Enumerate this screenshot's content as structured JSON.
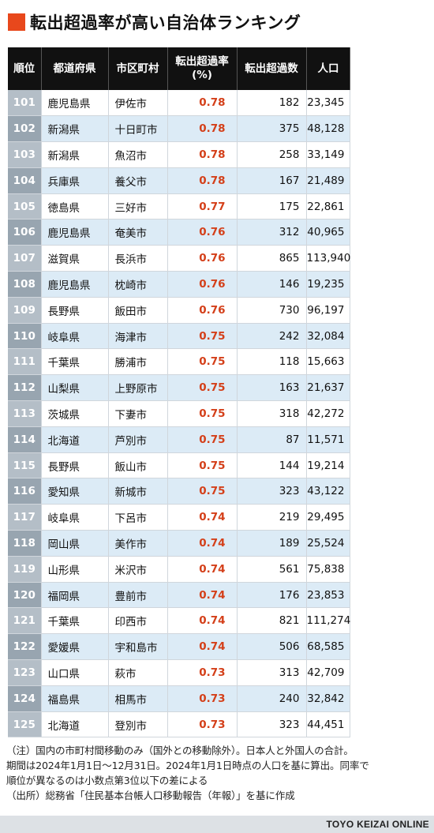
{
  "title": "転出超過率が高い自治体ランキング",
  "accent_color": "#e8481c",
  "header": {
    "rank": "順位",
    "prefecture": "都道府県",
    "municipality": "市区町村",
    "rate_line1": "転出超過率",
    "rate_line2": "(%)",
    "net_outflow": "転出超過数",
    "population": "人口"
  },
  "rows": [
    {
      "rank": "101",
      "prefecture": "鹿児島県",
      "municipality": "伊佐市",
      "rate": "0.78",
      "net_outflow": "182",
      "population": "23,345"
    },
    {
      "rank": "102",
      "prefecture": "新潟県",
      "municipality": "十日町市",
      "rate": "0.78",
      "net_outflow": "375",
      "population": "48,128"
    },
    {
      "rank": "103",
      "prefecture": "新潟県",
      "municipality": "魚沼市",
      "rate": "0.78",
      "net_outflow": "258",
      "population": "33,149"
    },
    {
      "rank": "104",
      "prefecture": "兵庫県",
      "municipality": "養父市",
      "rate": "0.78",
      "net_outflow": "167",
      "population": "21,489"
    },
    {
      "rank": "105",
      "prefecture": "徳島県",
      "municipality": "三好市",
      "rate": "0.77",
      "net_outflow": "175",
      "population": "22,861"
    },
    {
      "rank": "106",
      "prefecture": "鹿児島県",
      "municipality": "奄美市",
      "rate": "0.76",
      "net_outflow": "312",
      "population": "40,965"
    },
    {
      "rank": "107",
      "prefecture": "滋賀県",
      "municipality": "長浜市",
      "rate": "0.76",
      "net_outflow": "865",
      "population": "113,940"
    },
    {
      "rank": "108",
      "prefecture": "鹿児島県",
      "municipality": "枕崎市",
      "rate": "0.76",
      "net_outflow": "146",
      "population": "19,235"
    },
    {
      "rank": "109",
      "prefecture": "長野県",
      "municipality": "飯田市",
      "rate": "0.76",
      "net_outflow": "730",
      "population": "96,197"
    },
    {
      "rank": "110",
      "prefecture": "岐阜県",
      "municipality": "海津市",
      "rate": "0.75",
      "net_outflow": "242",
      "population": "32,084"
    },
    {
      "rank": "111",
      "prefecture": "千葉県",
      "municipality": "勝浦市",
      "rate": "0.75",
      "net_outflow": "118",
      "population": "15,663"
    },
    {
      "rank": "112",
      "prefecture": "山梨県",
      "municipality": "上野原市",
      "rate": "0.75",
      "net_outflow": "163",
      "population": "21,637"
    },
    {
      "rank": "113",
      "prefecture": "茨城県",
      "municipality": "下妻市",
      "rate": "0.75",
      "net_outflow": "318",
      "population": "42,272"
    },
    {
      "rank": "114",
      "prefecture": "北海道",
      "municipality": "芦別市",
      "rate": "0.75",
      "net_outflow": "87",
      "population": "11,571"
    },
    {
      "rank": "115",
      "prefecture": "長野県",
      "municipality": "飯山市",
      "rate": "0.75",
      "net_outflow": "144",
      "population": "19,214"
    },
    {
      "rank": "116",
      "prefecture": "愛知県",
      "municipality": "新城市",
      "rate": "0.75",
      "net_outflow": "323",
      "population": "43,122"
    },
    {
      "rank": "117",
      "prefecture": "岐阜県",
      "municipality": "下呂市",
      "rate": "0.74",
      "net_outflow": "219",
      "population": "29,495"
    },
    {
      "rank": "118",
      "prefecture": "岡山県",
      "municipality": "美作市",
      "rate": "0.74",
      "net_outflow": "189",
      "population": "25,524"
    },
    {
      "rank": "119",
      "prefecture": "山形県",
      "municipality": "米沢市",
      "rate": "0.74",
      "net_outflow": "561",
      "population": "75,838"
    },
    {
      "rank": "120",
      "prefecture": "福岡県",
      "municipality": "豊前市",
      "rate": "0.74",
      "net_outflow": "176",
      "population": "23,853"
    },
    {
      "rank": "121",
      "prefecture": "千葉県",
      "municipality": "印西市",
      "rate": "0.74",
      "net_outflow": "821",
      "population": "111,274"
    },
    {
      "rank": "122",
      "prefecture": "愛媛県",
      "municipality": "宇和島市",
      "rate": "0.74",
      "net_outflow": "506",
      "population": "68,585"
    },
    {
      "rank": "123",
      "prefecture": "山口県",
      "municipality": "萩市",
      "rate": "0.73",
      "net_outflow": "313",
      "population": "42,709"
    },
    {
      "rank": "124",
      "prefecture": "福島県",
      "municipality": "相馬市",
      "rate": "0.73",
      "net_outflow": "240",
      "population": "32,842"
    },
    {
      "rank": "125",
      "prefecture": "北海道",
      "municipality": "登別市",
      "rate": "0.73",
      "net_outflow": "323",
      "population": "44,451"
    }
  ],
  "notes": [
    "（注）国内の市町村間移動のみ（国外との移動除外）。日本人と外国人の合計。",
    "期間は2024年1月1日～12月31日。2024年1月1日時点の人口を基に算出。同率で",
    "順位が異なるのは小数点第3位以下の差による",
    "（出所）総務省「住民基本台帳人口移動報告（年報）」を基に作成"
  ],
  "footer": "TOYO KEIZAI ONLINE"
}
